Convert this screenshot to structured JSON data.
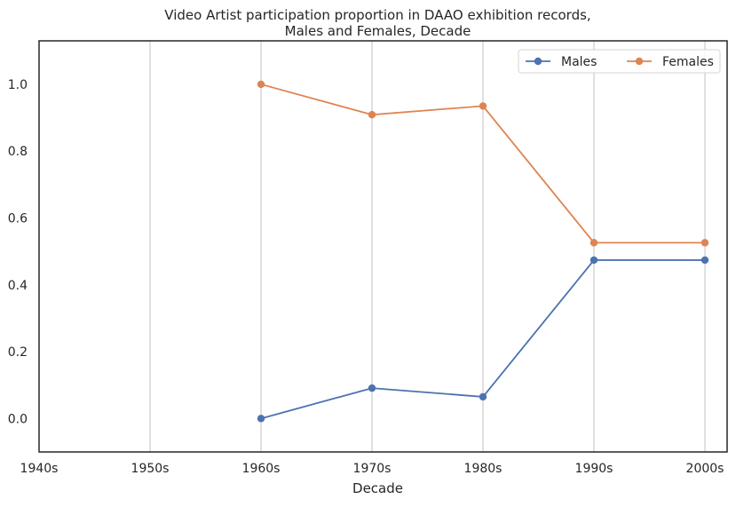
{
  "chart_data": {
    "type": "line",
    "title": "Video Artist participation proportion in DAAO exhibition records,",
    "subtitle": "Males and Females, Decade",
    "xlabel": "Decade",
    "ylabel": "",
    "categories": [
      "1940s",
      "1950s",
      "1960s",
      "1970s",
      "1980s",
      "1990s",
      "2000s"
    ],
    "yticks": [
      "0.0",
      "0.2",
      "0.4",
      "0.6",
      "0.8",
      "1.0"
    ],
    "ylim": [
      -0.1,
      1.13
    ],
    "grid": "vertical",
    "legend_position": "top-right",
    "series": [
      {
        "name": "Males",
        "color": "#4c72b0",
        "values": [
          null,
          null,
          0.0,
          0.091,
          0.065,
          0.474,
          0.474
        ]
      },
      {
        "name": "Females",
        "color": "#dd8452",
        "values": [
          null,
          null,
          1.0,
          0.909,
          0.935,
          0.526,
          0.526
        ]
      }
    ]
  }
}
